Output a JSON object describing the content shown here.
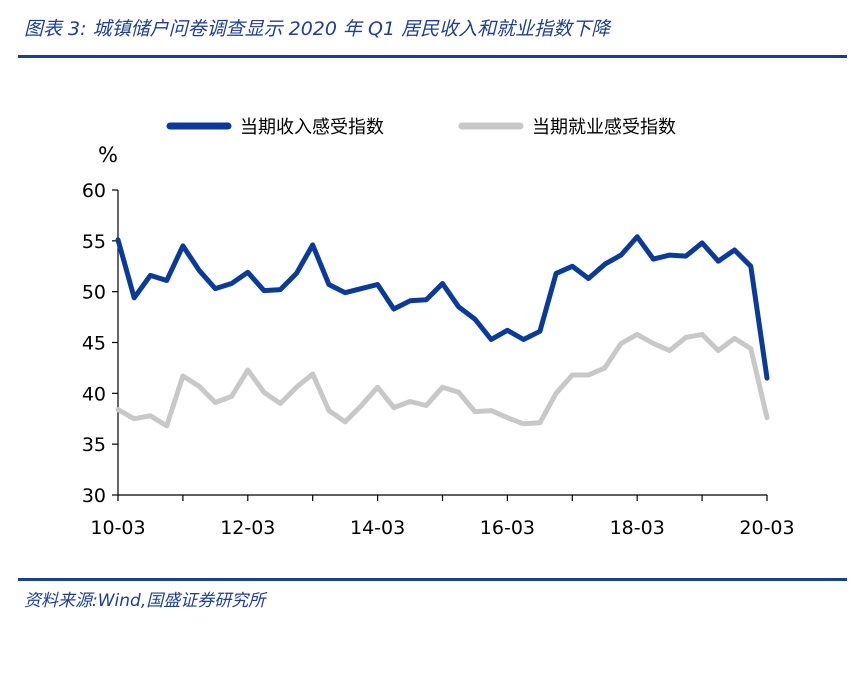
{
  "header": {
    "title": "图表 3:  城镇储户问卷调查显示 2020 年 Q1 居民收入和就业指数下降"
  },
  "footer": {
    "source": "资料来源:Wind,国盛证券研究所"
  },
  "colors": {
    "income": "#0c3a99",
    "employment": "#c8c8c8",
    "accent": "#1b3f8f"
  },
  "chart_data": {
    "type": "line",
    "title": "",
    "unit": "%",
    "xlabel": "",
    "ylabel": "",
    "ylim": [
      30,
      60
    ],
    "yticks": [
      30,
      35,
      40,
      45,
      50,
      55,
      60
    ],
    "x_tick_labels": [
      "10-03",
      "12-03",
      "14-03",
      "16-03",
      "18-03",
      "20-03"
    ],
    "grid": false,
    "legend": "top-center",
    "x": [
      "10-03",
      "10-06",
      "10-09",
      "10-12",
      "11-03",
      "11-06",
      "11-09",
      "11-12",
      "12-03",
      "12-06",
      "12-09",
      "12-12",
      "13-03",
      "13-06",
      "13-09",
      "13-12",
      "14-03",
      "14-06",
      "14-09",
      "14-12",
      "15-03",
      "15-06",
      "15-09",
      "15-12",
      "16-03",
      "16-06",
      "16-09",
      "16-12",
      "17-03",
      "17-06",
      "17-09",
      "17-12",
      "18-03",
      "18-06",
      "18-09",
      "18-12",
      "19-03",
      "19-06",
      "19-09",
      "19-12",
      "20-03"
    ],
    "series": [
      {
        "name": "当期收入感受指数",
        "values": [
          55.1,
          49.4,
          51.6,
          51.1,
          54.5,
          52.1,
          50.3,
          50.8,
          51.9,
          50.1,
          50.2,
          51.8,
          54.6,
          50.7,
          49.9,
          50.3,
          50.7,
          48.3,
          49.1,
          49.2,
          50.8,
          48.5,
          47.3,
          45.3,
          46.2,
          45.3,
          46.1,
          51.8,
          52.5,
          51.3,
          52.7,
          53.6,
          55.4,
          53.2,
          53.6,
          53.5,
          54.8,
          53.0,
          54.1,
          52.5,
          41.5
        ]
      },
      {
        "name": "当期就业感受指数",
        "values": [
          38.4,
          37.5,
          37.8,
          36.8,
          41.7,
          40.7,
          39.1,
          39.7,
          42.3,
          40.1,
          39.0,
          40.6,
          41.9,
          38.3,
          37.2,
          38.8,
          40.6,
          38.6,
          39.2,
          38.8,
          40.6,
          40.1,
          38.2,
          38.3,
          37.6,
          37.0,
          37.1,
          40.0,
          41.8,
          41.8,
          42.5,
          44.9,
          45.8,
          44.9,
          44.2,
          45.5,
          45.8,
          44.2,
          45.4,
          44.4,
          37.6
        ]
      }
    ]
  }
}
